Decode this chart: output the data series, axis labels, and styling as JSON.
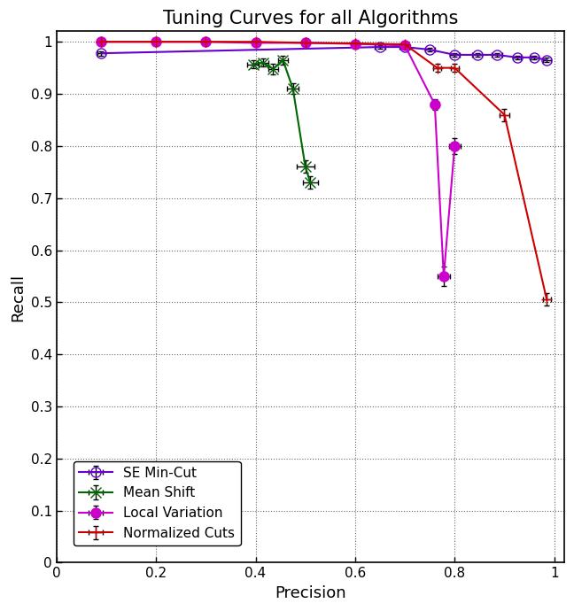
{
  "title": "Tuning Curves for all Algorithms",
  "xlabel": "Precision",
  "ylabel": "Recall",
  "xlim": [
    0,
    1.02
  ],
  "ylim": [
    0,
    1.02
  ],
  "xticks": [
    0,
    0.2,
    0.4,
    0.6,
    0.8,
    1.0
  ],
  "yticks": [
    0,
    0.1,
    0.2,
    0.3,
    0.4,
    0.5,
    0.6,
    0.7,
    0.8,
    0.9,
    1.0
  ],
  "se_mincut": {
    "label": "SE Min-Cut",
    "color": "#6600cc",
    "marker": "o",
    "markerfacecolor": "none",
    "markersize": 8,
    "linewidth": 1.5,
    "x": [
      0.09,
      0.65,
      0.7,
      0.75,
      0.8,
      0.845,
      0.885,
      0.925,
      0.96,
      0.985
    ],
    "y": [
      0.978,
      0.99,
      0.99,
      0.985,
      0.975,
      0.975,
      0.975,
      0.97,
      0.97,
      0.965
    ],
    "xerr": [
      0.008,
      0.01,
      0.01,
      0.01,
      0.01,
      0.01,
      0.01,
      0.008,
      0.008,
      0.008
    ],
    "yerr": [
      0.004,
      0.004,
      0.004,
      0.004,
      0.004,
      0.004,
      0.004,
      0.004,
      0.004,
      0.004
    ]
  },
  "mean_shift": {
    "label": "Mean Shift",
    "color": "#006600",
    "marker": "x",
    "markerfacecolor": "#006600",
    "markersize": 8,
    "linewidth": 1.5,
    "x": [
      0.395,
      0.415,
      0.435,
      0.455,
      0.475,
      0.5,
      0.51
    ],
    "y": [
      0.957,
      0.96,
      0.948,
      0.965,
      0.91,
      0.76,
      0.73
    ],
    "xerr": [
      0.012,
      0.01,
      0.01,
      0.01,
      0.012,
      0.018,
      0.015
    ],
    "yerr": [
      0.008,
      0.008,
      0.01,
      0.008,
      0.01,
      0.012,
      0.012
    ]
  },
  "local_variation": {
    "label": "Local Variation",
    "color": "#cc00cc",
    "marker": "o",
    "markerfacecolor": "#cc00cc",
    "markersize": 8,
    "linewidth": 1.5,
    "x": [
      0.09,
      0.2,
      0.3,
      0.4,
      0.5,
      0.6,
      0.7,
      0.76,
      0.778,
      0.8
    ],
    "y": [
      1.0,
      1.0,
      1.0,
      0.998,
      0.998,
      0.996,
      0.993,
      0.88,
      0.55,
      0.8
    ],
    "xerr": [
      0.004,
      0.004,
      0.004,
      0.004,
      0.004,
      0.004,
      0.005,
      0.008,
      0.012,
      0.012
    ],
    "yerr": [
      0.002,
      0.002,
      0.002,
      0.002,
      0.002,
      0.002,
      0.004,
      0.01,
      0.018,
      0.015
    ]
  },
  "normalized_cuts": {
    "label": "Normalized Cuts",
    "color": "#cc0000",
    "marker": "+",
    "markerfacecolor": "#cc0000",
    "markersize": 9,
    "linewidth": 1.5,
    "x": [
      0.09,
      0.2,
      0.3,
      0.4,
      0.5,
      0.6,
      0.7,
      0.765,
      0.8,
      0.9,
      0.985
    ],
    "y": [
      1.0,
      1.0,
      1.0,
      1.0,
      0.998,
      0.997,
      0.995,
      0.95,
      0.95,
      0.86,
      0.505
    ],
    "xerr": [
      0.004,
      0.004,
      0.004,
      0.004,
      0.004,
      0.004,
      0.005,
      0.008,
      0.008,
      0.01,
      0.008
    ],
    "yerr": [
      0.002,
      0.002,
      0.002,
      0.002,
      0.002,
      0.002,
      0.004,
      0.008,
      0.008,
      0.012,
      0.012
    ]
  },
  "title_fontsize": 15,
  "label_fontsize": 13,
  "tick_fontsize": 11
}
